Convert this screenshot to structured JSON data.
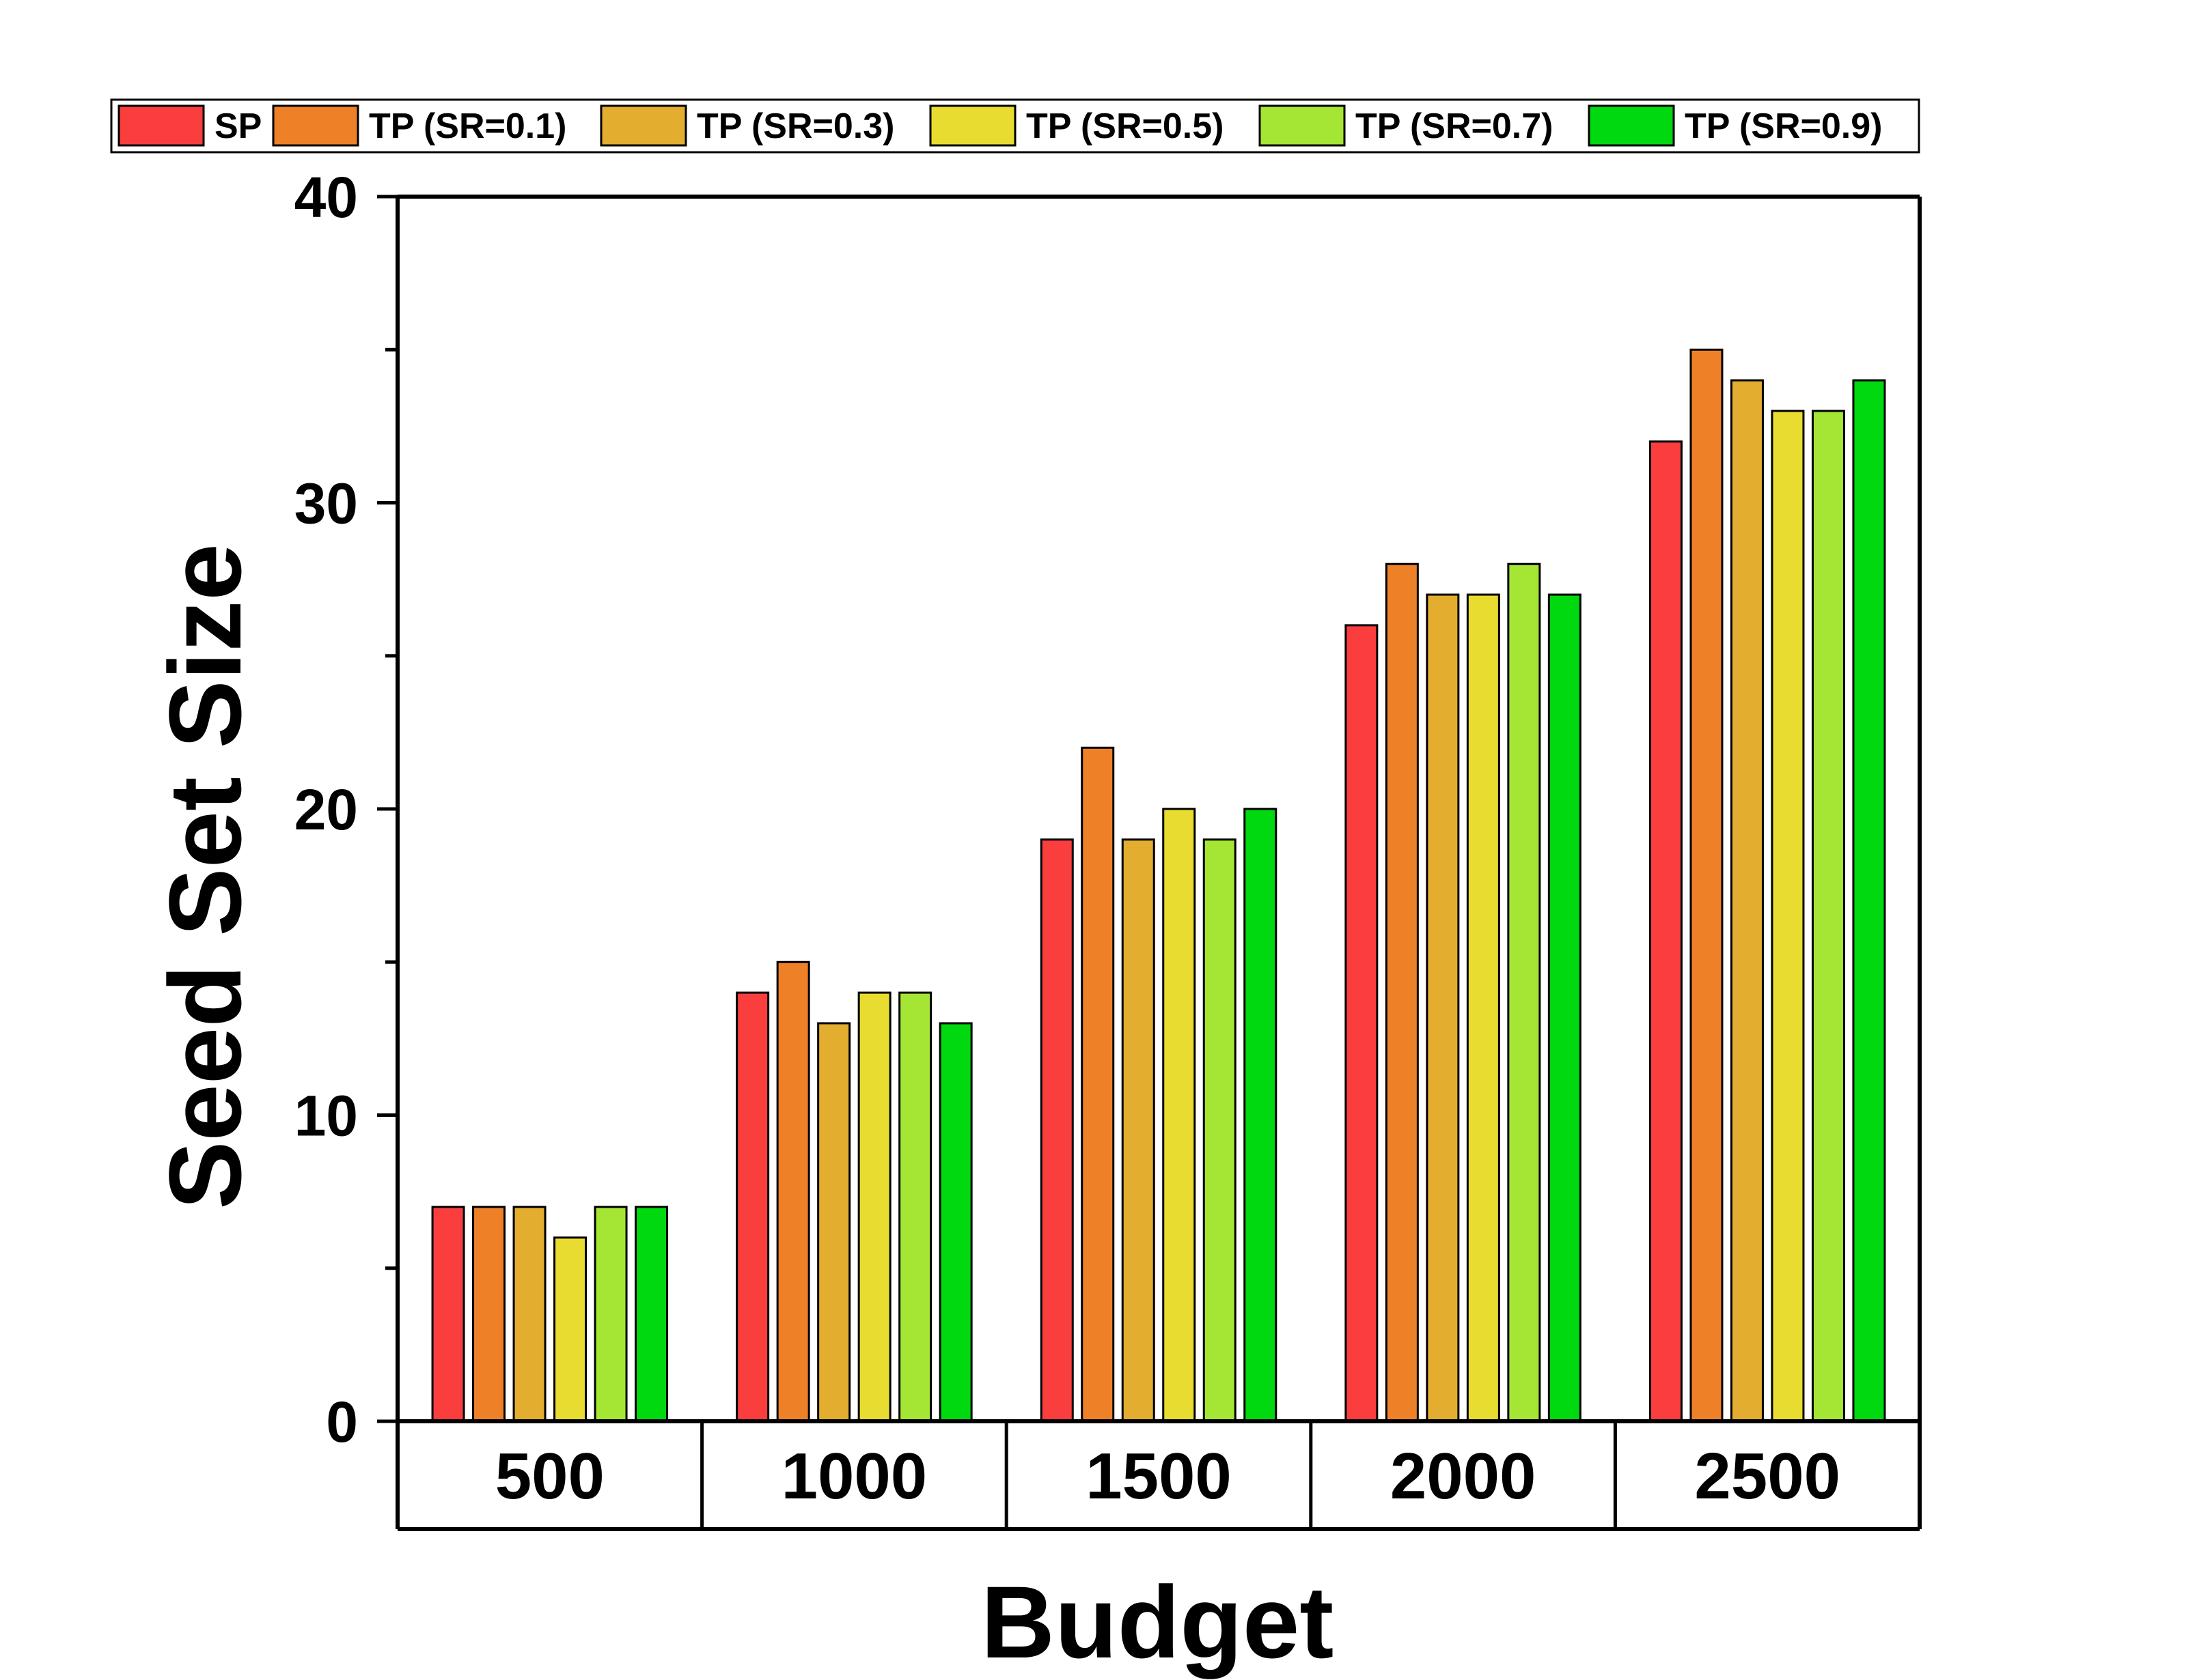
{
  "chart_data": {
    "type": "bar",
    "title": "",
    "xlabel": "Budget",
    "ylabel": "Seed Set Size",
    "categories": [
      "500",
      "1000",
      "1500",
      "2000",
      "2500"
    ],
    "ylim": [
      0,
      40
    ],
    "yticks": [
      0,
      10,
      20,
      30,
      40
    ],
    "grid": false,
    "legend_position": "top",
    "series": [
      {
        "name": "SP",
        "color": "#fa3e3e",
        "values": [
          7,
          14,
          19,
          26,
          32
        ]
      },
      {
        "name": "TP (SR=0.1)",
        "color": "#ee8127",
        "values": [
          7,
          15,
          22,
          28,
          35
        ]
      },
      {
        "name": "TP (SR=0.3)",
        "color": "#e3ad30",
        "values": [
          7,
          13,
          19,
          27,
          34
        ]
      },
      {
        "name": "TP (SR=0.5)",
        "color": "#e9dc30",
        "values": [
          6,
          14,
          20,
          27,
          33
        ]
      },
      {
        "name": "TP (SR=0.7)",
        "color": "#a5e634",
        "values": [
          7,
          14,
          19,
          28,
          33
        ]
      },
      {
        "name": "TP (SR=0.9)",
        "color": "#00d80f",
        "values": [
          7,
          13,
          20,
          27,
          34
        ]
      }
    ]
  }
}
